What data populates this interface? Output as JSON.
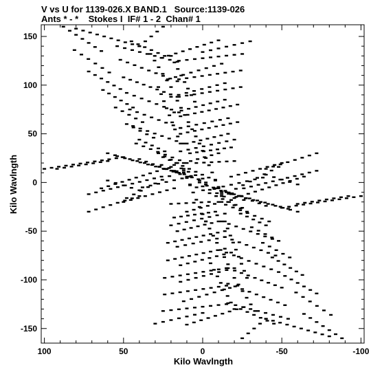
{
  "title_line1": "V vs U for 1139-026.X BAND.1   Source:1139-026",
  "title_line2": "Ants * - *    Stokes I  IF# 1 - 2  Chan# 1",
  "chart_data": {
    "type": "scatter",
    "title": "V vs U for 1139-026.X BAND.1   Source:1139-026",
    "subtitle": "Ants * - *    Stokes I  IF# 1 - 2  Chan# 1",
    "xlabel": "Kilo Wavlngth",
    "ylabel": "Kilo Wavlngth",
    "xlim": [
      102,
      -102
    ],
    "ylim": [
      -165,
      162
    ],
    "xticks": [
      100,
      50,
      0,
      -50,
      -100
    ],
    "yticks": [
      150,
      100,
      50,
      0,
      -50,
      -100,
      -150
    ],
    "xticklabels": [
      "100",
      "50",
      "0",
      "-50",
      "-100"
    ],
    "yticklabels": [
      "150",
      "100",
      "50",
      "0",
      "-50",
      "-100",
      "-150"
    ],
    "color": "#000000",
    "grid": false,
    "tracks": [
      {
        "u": [
          88,
          64
        ],
        "v": [
          160,
          135
        ]
      },
      {
        "u": [
          81,
          59
        ],
        "v": [
          136,
          113
        ]
      },
      {
        "u": [
          72,
          52
        ],
        "v": [
          114,
          96
        ]
      },
      {
        "u": [
          63,
          44
        ],
        "v": [
          95,
          77
        ]
      },
      {
        "u": [
          55,
          38
        ],
        "v": [
          77,
          62
        ]
      },
      {
        "u": [
          48,
          31
        ],
        "v": [
          60,
          46
        ]
      },
      {
        "u": [
          40,
          24
        ],
        "v": [
          44,
          32
        ]
      },
      {
        "u": [
          28,
          16
        ],
        "v": [
          30,
          20
        ]
      },
      {
        "u": [
          25,
          -8
        ],
        "v": [
          26,
          2
        ]
      },
      {
        "u": [
          18,
          0
        ],
        "v": [
          18,
          4
        ]
      },
      {
        "u": [
          12,
          -2
        ],
        "v": [
          10,
          0
        ]
      },
      {
        "u": [
          20,
          5
        ],
        "v": [
          130,
          83
        ]
      },
      {
        "u": [
          16,
          2
        ],
        "v": [
          84,
          40
        ]
      },
      {
        "u": [
          2,
          -12
        ],
        "v": [
          40,
          -12
        ]
      },
      {
        "u": [
          -14,
          -28
        ],
        "v": [
          -40,
          -98
        ]
      },
      {
        "u": [
          -20,
          -33
        ],
        "v": [
          -98,
          -132
        ]
      },
      {
        "u": [
          -2,
          -26
        ],
        "v": [
          -2,
          -18
        ]
      },
      {
        "u": [
          -10,
          -40
        ],
        "v": [
          -6,
          -24
        ]
      },
      {
        "u": [
          -15,
          -54
        ],
        "v": [
          -10,
          -27
        ]
      },
      {
        "u": [
          -18,
          -60
        ],
        "v": [
          -12,
          -30
        ]
      },
      {
        "u": [
          26,
          -10
        ],
        "v": [
          128,
          146
        ]
      },
      {
        "u": [
          22,
          -12
        ],
        "v": [
          106,
          122
        ]
      },
      {
        "u": [
          20,
          -14
        ],
        "v": [
          88,
          102
        ]
      },
      {
        "u": [
          18,
          -14
        ],
        "v": [
          72,
          85
        ]
      },
      {
        "u": [
          14,
          -16
        ],
        "v": [
          56,
          66
        ]
      },
      {
        "u": [
          10,
          -16
        ],
        "v": [
          40,
          50
        ]
      },
      {
        "u": [
          8,
          -18
        ],
        "v": [
          30,
          36
        ]
      },
      {
        "u": [
          4,
          -20
        ],
        "v": [
          20,
          22
        ]
      },
      {
        "u": [
          38,
          8
        ],
        "v": [
          -5,
          6
        ]
      },
      {
        "u": [
          50,
          18
        ],
        "v": [
          -20,
          -6
        ]
      },
      {
        "u": [
          72,
          40
        ],
        "v": [
          -30,
          -14
        ]
      },
      {
        "u": [
          92,
          60
        ],
        "v": [
          14,
          22
        ]
      },
      {
        "u": [
          -40,
          -60
        ],
        "v": [
          8,
          -2
        ]
      },
      {
        "u": [
          -10,
          -42
        ],
        "v": [
          -20,
          -40
        ]
      },
      {
        "u": [
          -12,
          -44
        ],
        "v": [
          -40,
          -58
        ]
      },
      {
        "u": [
          -14,
          -46
        ],
        "v": [
          -56,
          -75
        ]
      },
      {
        "u": [
          -15,
          -48
        ],
        "v": [
          -72,
          -92
        ]
      },
      {
        "u": [
          -16,
          -50
        ],
        "v": [
          -88,
          -108
        ]
      },
      {
        "u": [
          -16,
          -52
        ],
        "v": [
          -104,
          -126
        ]
      },
      {
        "u": [
          -16,
          -54
        ],
        "v": [
          -124,
          -140
        ]
      },
      {
        "u": [
          -12,
          -48
        ],
        "v": [
          -14,
          16
        ]
      },
      {
        "u": [
          -20,
          -64
        ],
        "v": [
          -16,
          6
        ]
      },
      {
        "u": [
          -26,
          -72
        ],
        "v": [
          -6,
          12
        ]
      },
      {
        "u": [
          -50,
          -100
        ],
        "v": [
          -26,
          -14
        ]
      },
      {
        "u": [
          -24,
          -45
        ],
        "v": [
          -130,
          -145
        ]
      },
      {
        "u": [
          -40,
          -80
        ],
        "v": [
          -140,
          -158
        ]
      },
      {
        "u": [
          25,
          -15
        ],
        "v": [
          -132,
          -125
        ]
      },
      {
        "u": [
          24,
          -15
        ],
        "v": [
          -115,
          -106
        ]
      },
      {
        "u": [
          24,
          -15
        ],
        "v": [
          -98,
          -88
        ]
      },
      {
        "u": [
          22,
          -14
        ],
        "v": [
          -80,
          -68
        ]
      },
      {
        "u": [
          22,
          -14
        ],
        "v": [
          -62,
          -50
        ]
      },
      {
        "u": [
          20,
          -14
        ],
        "v": [
          -44,
          -32
        ]
      },
      {
        "u": [
          10,
          -12
        ],
        "v": [
          -30,
          -20
        ]
      },
      {
        "u": [
          30,
          0
        ],
        "v": [
          -145,
          -134
        ]
      },
      {
        "u": [
          -25,
          -40
        ],
        "v": [
          -160,
          -140
        ]
      }
    ]
  }
}
